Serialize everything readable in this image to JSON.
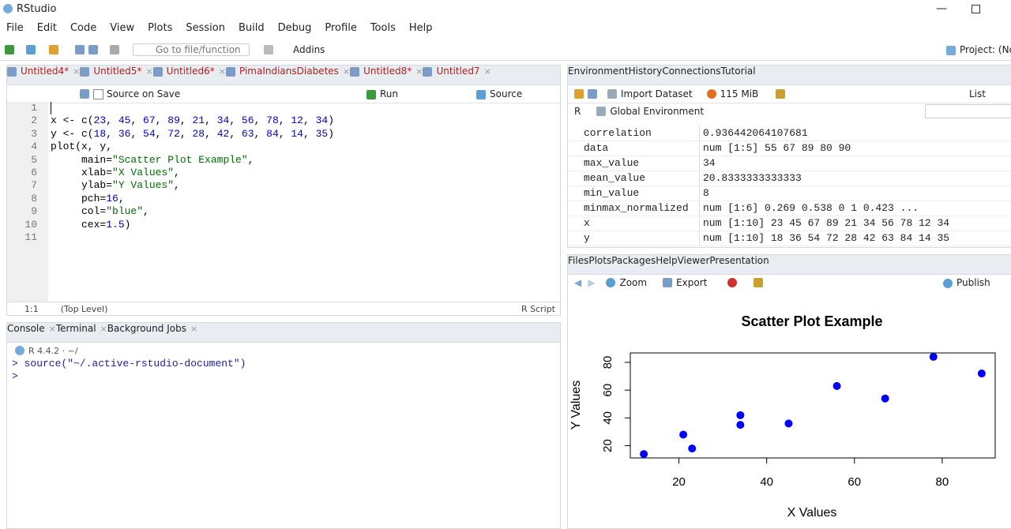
{
  "window": {
    "title": "RStudio"
  },
  "menu": [
    "File",
    "Edit",
    "Code",
    "View",
    "Plots",
    "Session",
    "Build",
    "Debug",
    "Profile",
    "Tools",
    "Help"
  ],
  "toolbar": {
    "goto": "Go to file/function",
    "addins": "Addins",
    "project": "Project: (Non"
  },
  "editor": {
    "tabs": [
      "Untitled4*",
      "Untitled5*",
      "Untitled6*",
      "PimaIndiansDiabetes",
      "Untitled8*",
      "Untitled7"
    ],
    "source_on_save": "Source on Save",
    "run": "Run",
    "source": "Source",
    "lines": [
      {
        "n": 1
      },
      {
        "n": 2,
        "text": "x <- c(23, 45, 67, 89, 21, 34, 56, 78, 12, 34)"
      },
      {
        "n": 3,
        "text": "y <- c(18, 36, 54, 72, 28, 42, 63, 84, 14, 35)"
      },
      {
        "n": 4,
        "text": "plot(x, y,"
      },
      {
        "n": 5,
        "text": "     main=\"Scatter Plot Example\","
      },
      {
        "n": 6,
        "text": "     xlab=\"X Values\","
      },
      {
        "n": 7,
        "text": "     ylab=\"Y Values\","
      },
      {
        "n": 8,
        "text": "     pch=16,"
      },
      {
        "n": 9,
        "text": "     col=\"blue\","
      },
      {
        "n": 10,
        "text": "     cex=1.5)"
      },
      {
        "n": 11
      }
    ],
    "status": {
      "position": "1:1",
      "scope": "(Top Level)",
      "mode": "R Script"
    }
  },
  "console": {
    "tabs": [
      "Console",
      "Terminal",
      "Background Jobs"
    ],
    "version": "R 4.4.2 · ~/",
    "lines": [
      "> source(\"~/.active-rstudio-document\")",
      ">"
    ]
  },
  "environment": {
    "tabs": [
      "Environment",
      "History",
      "Connections",
      "Tutorial"
    ],
    "import": "Import Dataset",
    "memory": "115 MiB",
    "view": "List",
    "lang": "R",
    "scope": "Global Environment",
    "rows": [
      [
        "correlation",
        "0.936442064107681"
      ],
      [
        "data",
        "num [1:5] 55 67 89 80 90"
      ],
      [
        "max_value",
        "34"
      ],
      [
        "mean_value",
        "20.8333333333333"
      ],
      [
        "min_value",
        "8"
      ],
      [
        "minmax_normalized",
        "num [1:6] 0.269 0.538 0 1 0.423 ..."
      ],
      [
        "x",
        "num [1:10] 23 45 67 89 21 34 56 78 12 34"
      ],
      [
        "y",
        "num [1:10] 18 36 54 72 28 42 63 84 14 35"
      ]
    ]
  },
  "plots": {
    "tabs": [
      "Files",
      "Plots",
      "Packages",
      "Help",
      "Viewer",
      "Presentation"
    ],
    "zoom": "Zoom",
    "export": "Export",
    "publish": "Publish",
    "chart_data": {
      "type": "scatter",
      "title": "Scatter Plot Example",
      "x_label": "X Values",
      "y_label": "Y Values",
      "x": [
        23,
        45,
        67,
        89,
        21,
        34,
        56,
        78,
        12,
        34
      ],
      "values": [
        18,
        36,
        54,
        72,
        28,
        42,
        63,
        84,
        14,
        35
      ],
      "color": "#0000ff",
      "xlim": [
        8.92,
        92.08
      ],
      "ylim": [
        11.2,
        86.8
      ],
      "xticks": [
        20,
        40,
        60,
        80
      ],
      "yticks": [
        20,
        40,
        60,
        80
      ]
    }
  }
}
